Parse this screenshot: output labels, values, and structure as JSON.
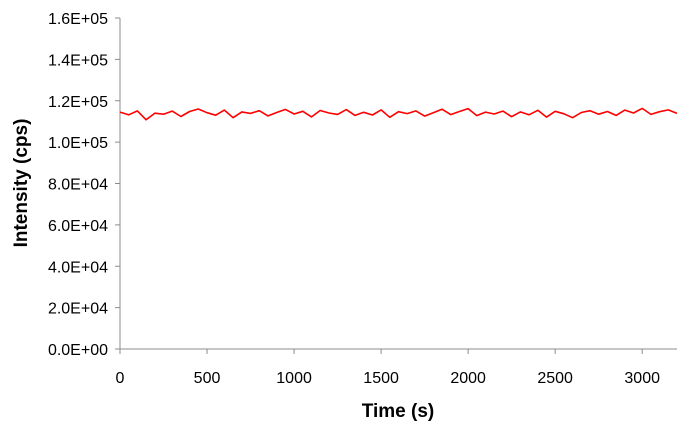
{
  "chart_data": {
    "type": "line",
    "title": "",
    "xlabel": "Time (s)",
    "ylabel": "Intensity (cps)",
    "xlim": [
      0,
      3200
    ],
    "ylim": [
      0,
      160000
    ],
    "x_ticks": [
      0,
      500,
      1000,
      1500,
      2000,
      2500,
      3000
    ],
    "x_tick_labels": [
      "0",
      "500",
      "1000",
      "1500",
      "2000",
      "2500",
      "3000"
    ],
    "y_ticks": [
      0,
      20000,
      40000,
      60000,
      80000,
      100000,
      120000,
      140000,
      160000
    ],
    "y_tick_labels": [
      "0.0E+00",
      "2.0E+04",
      "4.0E+04",
      "6.0E+04",
      "8.0E+04",
      "1.0E+05",
      "1.2E+05",
      "1.4E+05",
      "1.6E+05"
    ],
    "grid": false,
    "legend": "none",
    "series": [
      {
        "color": "#ff0000",
        "x": [
          0,
          50,
          100,
          150,
          200,
          250,
          300,
          350,
          400,
          450,
          500,
          550,
          600,
          650,
          700,
          750,
          800,
          850,
          900,
          950,
          1000,
          1050,
          1100,
          1150,
          1200,
          1250,
          1300,
          1350,
          1400,
          1450,
          1500,
          1550,
          1600,
          1650,
          1700,
          1750,
          1800,
          1850,
          1900,
          1950,
          2000,
          2050,
          2100,
          2150,
          2200,
          2250,
          2300,
          2350,
          2400,
          2450,
          2500,
          2550,
          2600,
          2650,
          2700,
          2750,
          2800,
          2850,
          2900,
          2950,
          3000,
          3050,
          3100,
          3150,
          3200
        ],
        "y": [
          114500,
          113200,
          115100,
          110800,
          114000,
          113500,
          115000,
          112400,
          114800,
          116000,
          114200,
          113000,
          115500,
          111800,
          114600,
          113900,
          115200,
          112700,
          114300,
          115800,
          113600,
          114900,
          112200,
          115300,
          114100,
          113400,
          115700,
          112900,
          114400,
          113100,
          115600,
          112000,
          114700,
          113800,
          115100,
          112600,
          114200,
          115900,
          113300,
          114800,
          116200,
          112800,
          114500,
          113600,
          115000,
          112300,
          114600,
          113200,
          115400,
          112100,
          114900,
          113700,
          111800,
          114300,
          115200,
          113500,
          114800,
          112900,
          115500,
          114100,
          116300,
          113400,
          114700,
          115600,
          113900
        ]
      }
    ]
  }
}
